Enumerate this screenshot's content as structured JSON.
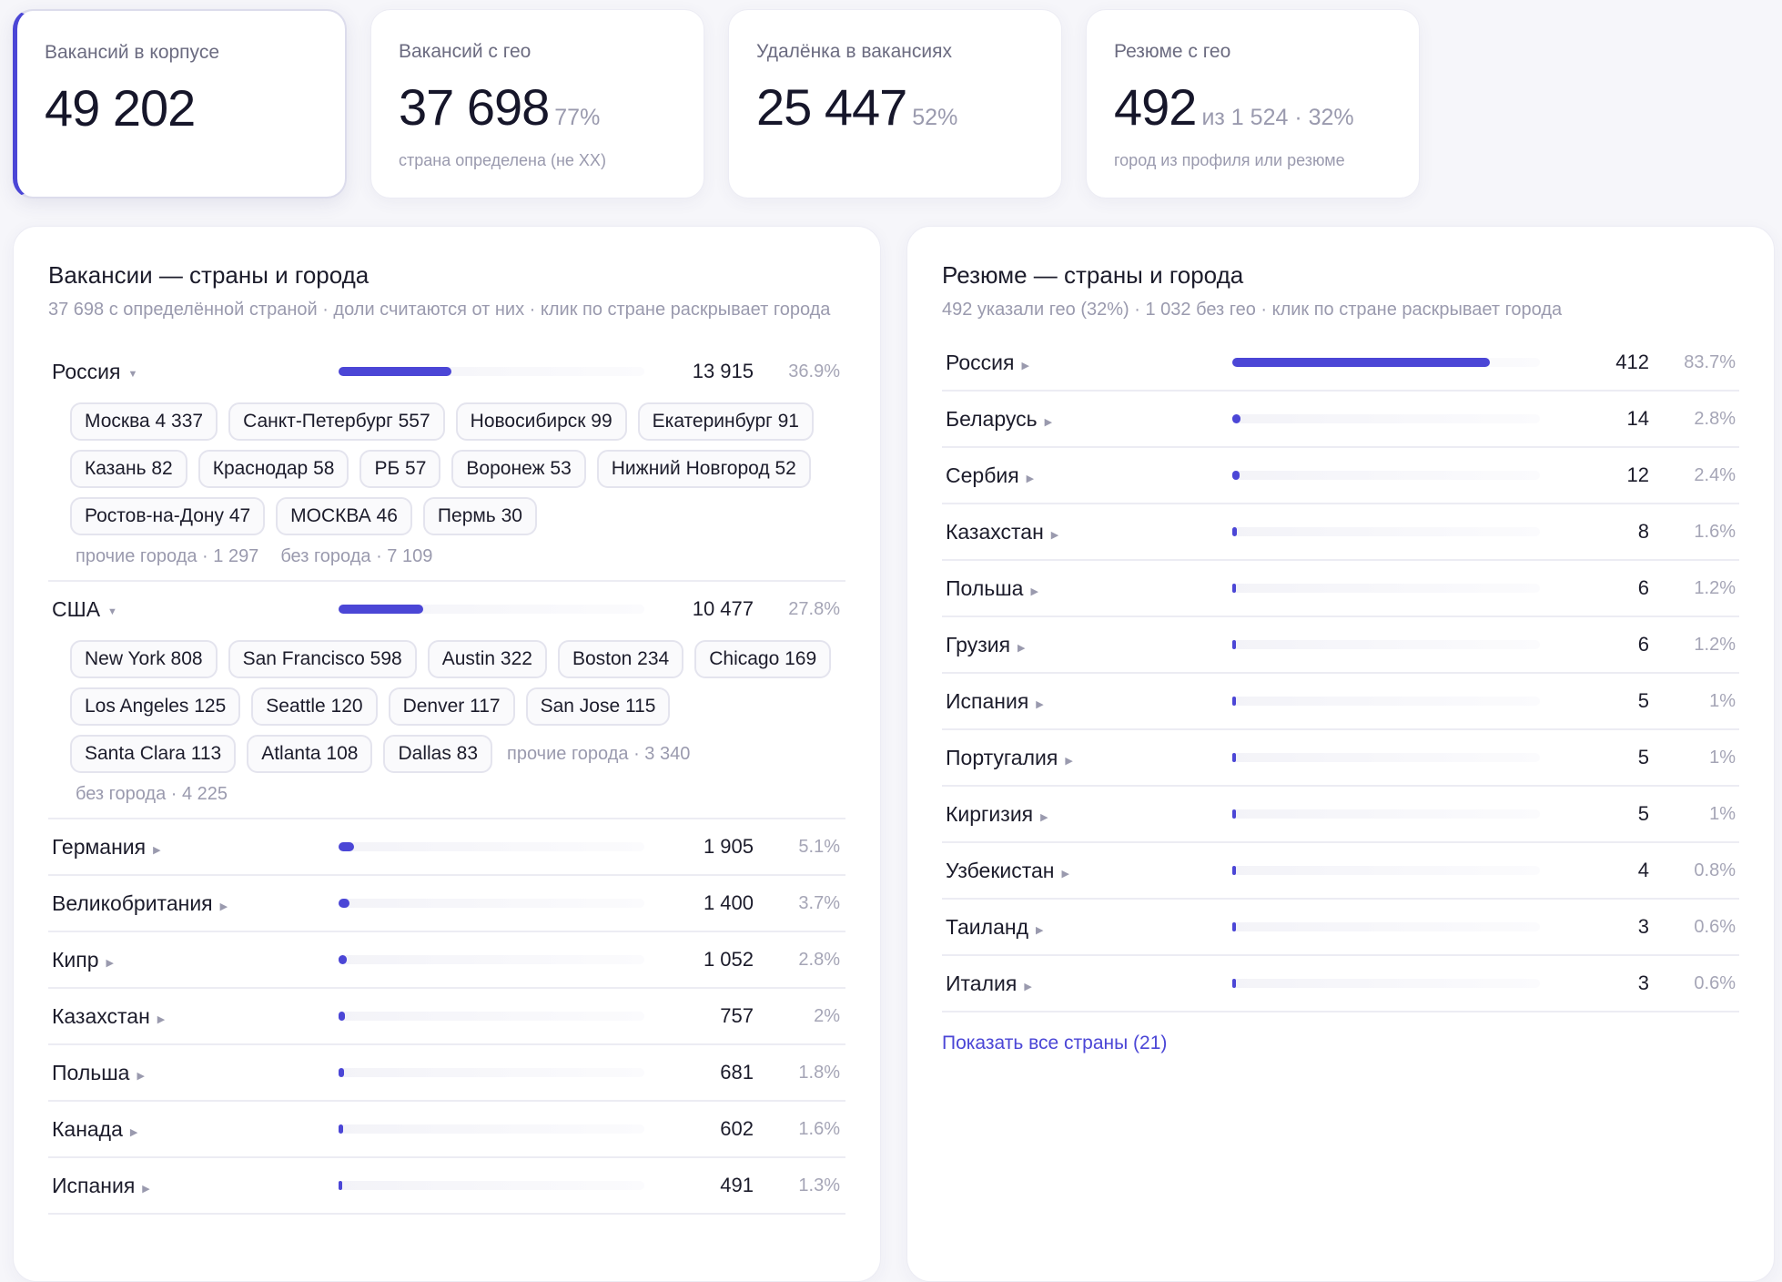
{
  "kpis": [
    {
      "label": "Вакансий в корпусе",
      "value": "49 202",
      "suffix": "",
      "note": ""
    },
    {
      "label": "Вакансий с гео",
      "value": "37 698",
      "suffix": "77%",
      "note": "страна определена (не XX)"
    },
    {
      "label": "Удалёнка в вакансиях",
      "value": "25 447",
      "suffix": "52%",
      "note": ""
    },
    {
      "label": "Резюме с гео",
      "value": "492",
      "suffix": "из 1 524 · 32%",
      "note": "город из профиля или резюме"
    }
  ],
  "vacancies": {
    "title": "Вакансии — страны и города",
    "subtitle": "37 698 с определённой страной · доли считаются от них · клик по стране раскрывает города",
    "russia": {
      "name": "Россия",
      "count": "13 915",
      "pct": "36.9%",
      "share": 36.9
    },
    "russia_cities": [
      "Москва 4 337",
      "Санкт-Петербург 557",
      "Новосибирск 99",
      "Екатеринбург 91",
      "Казань 82",
      "Краснодар 58",
      "РБ 57",
      "Воронеж 53",
      "Нижний Новгород 52",
      "Ростов-на-Дону 47",
      "МОСКВА 46",
      "Пермь 30"
    ],
    "russia_other": "прочие города · 1 297",
    "russia_nocity": "без города · 7 109",
    "usa": {
      "name": "США",
      "count": "10 477",
      "pct": "27.8%",
      "share": 27.8
    },
    "usa_cities": [
      "New York 808",
      "San Francisco 598",
      "Austin 322",
      "Boston 234",
      "Chicago 169",
      "Los Angeles 125",
      "Seattle 120",
      "Denver 117",
      "San Jose 115",
      "Santa Clara 113",
      "Atlanta 108",
      "Dallas 83"
    ],
    "usa_other": "прочие города · 3 340",
    "usa_nocity": "без города · 4 225",
    "rows": [
      {
        "name": "Германия",
        "count": "1 905",
        "pct": "5.1%",
        "share": 5.1
      },
      {
        "name": "Великобритания",
        "count": "1 400",
        "pct": "3.7%",
        "share": 3.7
      },
      {
        "name": "Кипр",
        "count": "1 052",
        "pct": "2.8%",
        "share": 2.8
      },
      {
        "name": "Казахстан",
        "count": "757",
        "pct": "2%",
        "share": 2.0
      },
      {
        "name": "Польша",
        "count": "681",
        "pct": "1.8%",
        "share": 1.8
      },
      {
        "name": "Канада",
        "count": "602",
        "pct": "1.6%",
        "share": 1.6
      },
      {
        "name": "Испания",
        "count": "491",
        "pct": "1.3%",
        "share": 1.3
      }
    ]
  },
  "resumes": {
    "title": "Резюме — страны и города",
    "subtitle": "492 указали гео (32%) · 1 032 без гео · клик по стране раскрывает города",
    "rows": [
      {
        "name": "Россия",
        "count": "412",
        "pct": "83.7%",
        "share": 83.7
      },
      {
        "name": "Беларусь",
        "count": "14",
        "pct": "2.8%",
        "share": 2.8
      },
      {
        "name": "Сербия",
        "count": "12",
        "pct": "2.4%",
        "share": 2.4
      },
      {
        "name": "Казахстан",
        "count": "8",
        "pct": "1.6%",
        "share": 1.6
      },
      {
        "name": "Польша",
        "count": "6",
        "pct": "1.2%",
        "share": 1.2
      },
      {
        "name": "Грузия",
        "count": "6",
        "pct": "1.2%",
        "share": 1.2
      },
      {
        "name": "Испания",
        "count": "5",
        "pct": "1%",
        "share": 1.0
      },
      {
        "name": "Португалия",
        "count": "5",
        "pct": "1%",
        "share": 1.0
      },
      {
        "name": "Киргизия",
        "count": "5",
        "pct": "1%",
        "share": 1.0
      },
      {
        "name": "Узбекистан",
        "count": "4",
        "pct": "0.8%",
        "share": 0.8
      },
      {
        "name": "Таиланд",
        "count": "3",
        "pct": "0.6%",
        "share": 0.6
      },
      {
        "name": "Италия",
        "count": "3",
        "pct": "0.6%",
        "share": 0.6
      }
    ],
    "show_all": "Показать все страны (21)"
  },
  "icons": {
    "expanded_caret": "caret-down-icon",
    "collapsed_caret": "caret-right-icon"
  },
  "colors": {
    "accent": "#4b46d6"
  }
}
